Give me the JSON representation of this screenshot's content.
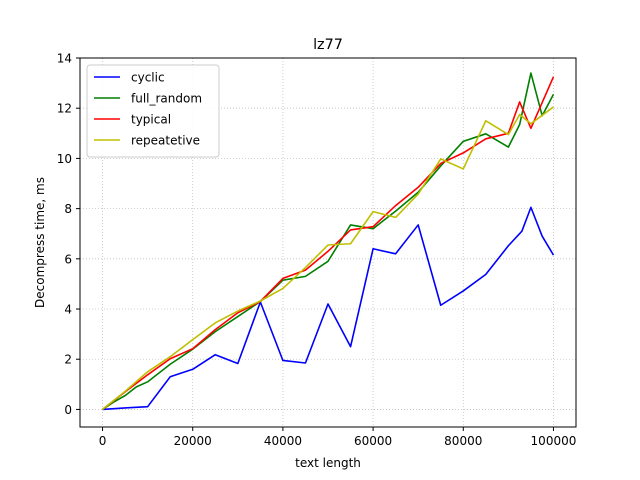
{
  "chart_data": {
    "type": "line",
    "title": "lz77",
    "xlabel": "text length",
    "ylabel": "Decompress time, ms",
    "xlim": [
      -5000,
      105000
    ],
    "ylim": [
      -0.7,
      14
    ],
    "xticks": [
      0,
      20000,
      40000,
      60000,
      80000,
      100000
    ],
    "yticks": [
      0,
      2,
      4,
      6,
      8,
      10,
      12,
      14
    ],
    "grid": true,
    "legend_position": "top-left",
    "series": [
      {
        "name": "cyclic",
        "color": "#0000ff",
        "x": [
          0,
          5000,
          10000,
          15000,
          20000,
          25000,
          30000,
          35000,
          40000,
          45000,
          50000,
          55000,
          60000,
          65000,
          70000,
          75000,
          80000,
          85000,
          90000,
          93000,
          95000,
          97500,
          100000
        ],
        "y": [
          0.0,
          0.06,
          0.11,
          1.3,
          1.6,
          2.18,
          1.83,
          4.28,
          1.95,
          1.85,
          4.2,
          2.5,
          6.4,
          6.2,
          7.35,
          4.15,
          4.72,
          5.38,
          6.52,
          7.1,
          8.05,
          6.9,
          6.15
        ]
      },
      {
        "name": "full_random",
        "color": "#008000",
        "x": [
          0,
          2500,
          5000,
          7500,
          10000,
          15000,
          20000,
          25000,
          30000,
          35000,
          40000,
          45000,
          50000,
          55000,
          60000,
          65000,
          70000,
          75000,
          80000,
          85000,
          90000,
          92500,
          95000,
          97500,
          100000
        ],
        "y": [
          0.0,
          0.3,
          0.55,
          0.9,
          1.1,
          1.8,
          2.4,
          3.1,
          3.7,
          4.3,
          5.15,
          5.3,
          5.9,
          7.35,
          7.2,
          7.9,
          8.65,
          9.7,
          10.68,
          10.98,
          10.45,
          11.35,
          13.4,
          11.7,
          12.55
        ]
      },
      {
        "name": "typical",
        "color": "#ff0000",
        "x": [
          0,
          5000,
          10000,
          15000,
          20000,
          25000,
          30000,
          35000,
          40000,
          45000,
          50000,
          55000,
          60000,
          65000,
          70000,
          75000,
          80000,
          85000,
          90000,
          92500,
          95000,
          100000
        ],
        "y": [
          0.0,
          0.7,
          1.38,
          2.02,
          2.42,
          3.18,
          3.85,
          4.3,
          5.22,
          5.55,
          6.3,
          7.15,
          7.28,
          8.12,
          8.85,
          9.8,
          10.22,
          10.78,
          11.0,
          12.25,
          11.2,
          13.25
        ]
      },
      {
        "name": "repeatetive",
        "color": "#bfbf00",
        "x": [
          0,
          5000,
          10000,
          15000,
          20000,
          25000,
          30000,
          35000,
          40000,
          45000,
          50000,
          55000,
          60000,
          65000,
          70000,
          75000,
          80000,
          85000,
          90000,
          92500,
          95000,
          100000
        ],
        "y": [
          0.0,
          0.72,
          1.5,
          2.1,
          2.78,
          3.45,
          3.92,
          4.32,
          4.82,
          5.65,
          6.55,
          6.6,
          7.88,
          7.65,
          8.58,
          9.98,
          9.58,
          11.5,
          10.95,
          11.75,
          11.38,
          12.05
        ]
      }
    ]
  }
}
